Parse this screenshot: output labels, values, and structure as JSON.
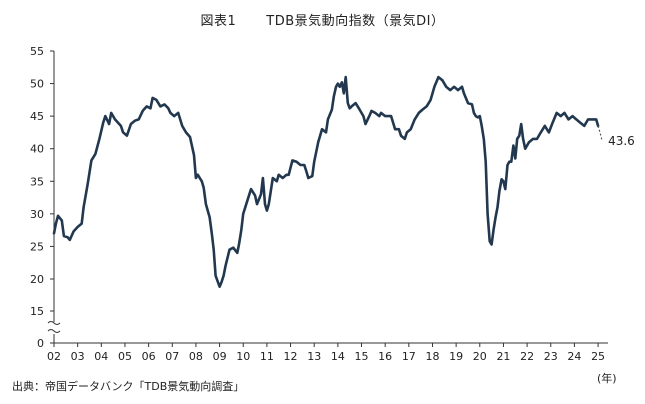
{
  "figure": {
    "number": "図表1",
    "title": "TDB景気動向指数（景気DI）"
  },
  "source": "出典：帝国データバンク「TDB景気動向調査」",
  "unit_label": "(年)",
  "chart_data": {
    "type": "line",
    "title": "TDB景気動向指数（景気DI）",
    "xlabel": "(年)",
    "ylabel": "",
    "xlim": [
      2002,
      2025.42
    ],
    "ylim": [
      0,
      55
    ],
    "axis_break": [
      0,
      15
    ],
    "grid": false,
    "line_color": "#22384f",
    "y_ticks": [
      0,
      15,
      20,
      25,
      30,
      35,
      40,
      45,
      50,
      55
    ],
    "x_ticks": [
      "02",
      "03",
      "04",
      "05",
      "06",
      "07",
      "08",
      "09",
      "10",
      "11",
      "12",
      "13",
      "14",
      "15",
      "16",
      "17",
      "18",
      "19",
      "20",
      "21",
      "22",
      "23",
      "24",
      "25"
    ],
    "end_label": "43.6",
    "series": [
      {
        "values": [
          [
            2002.0,
            27.0
          ],
          [
            2002.08,
            28.5
          ],
          [
            2002.17,
            29.7
          ],
          [
            2002.33,
            29.0
          ],
          [
            2002.42,
            26.6
          ],
          [
            2002.58,
            26.4
          ],
          [
            2002.67,
            26.0
          ],
          [
            2002.83,
            27.3
          ],
          [
            2003.0,
            28.0
          ],
          [
            2003.17,
            28.5
          ],
          [
            2003.25,
            31.0
          ],
          [
            2003.42,
            34.5
          ],
          [
            2003.58,
            38.2
          ],
          [
            2003.75,
            39.2
          ],
          [
            2003.92,
            41.5
          ],
          [
            2004.08,
            44.0
          ],
          [
            2004.17,
            45.0
          ],
          [
            2004.33,
            43.8
          ],
          [
            2004.42,
            45.5
          ],
          [
            2004.58,
            44.5
          ],
          [
            2004.83,
            43.5
          ],
          [
            2004.92,
            42.5
          ],
          [
            2005.08,
            42.0
          ],
          [
            2005.25,
            43.8
          ],
          [
            2005.42,
            44.3
          ],
          [
            2005.58,
            44.5
          ],
          [
            2005.75,
            45.8
          ],
          [
            2005.92,
            46.5
          ],
          [
            2006.08,
            46.2
          ],
          [
            2006.17,
            47.8
          ],
          [
            2006.33,
            47.5
          ],
          [
            2006.5,
            46.5
          ],
          [
            2006.67,
            46.8
          ],
          [
            2006.83,
            46.2
          ],
          [
            2006.92,
            45.5
          ],
          [
            2007.08,
            45.0
          ],
          [
            2007.25,
            45.5
          ],
          [
            2007.42,
            43.5
          ],
          [
            2007.58,
            42.5
          ],
          [
            2007.75,
            41.8
          ],
          [
            2007.92,
            39.0
          ],
          [
            2008.0,
            35.5
          ],
          [
            2008.08,
            36.0
          ],
          [
            2008.25,
            35.0
          ],
          [
            2008.33,
            34.0
          ],
          [
            2008.42,
            31.5
          ],
          [
            2008.58,
            29.5
          ],
          [
            2008.67,
            27.0
          ],
          [
            2008.75,
            24.5
          ],
          [
            2008.83,
            20.5
          ],
          [
            2009.0,
            18.8
          ],
          [
            2009.08,
            19.5
          ],
          [
            2009.17,
            20.5
          ],
          [
            2009.25,
            22.0
          ],
          [
            2009.42,
            24.5
          ],
          [
            2009.58,
            24.8
          ],
          [
            2009.75,
            24.0
          ],
          [
            2009.83,
            25.5
          ],
          [
            2009.92,
            27.5
          ],
          [
            2010.0,
            30.0
          ],
          [
            2010.17,
            32.0
          ],
          [
            2010.33,
            33.8
          ],
          [
            2010.5,
            32.8
          ],
          [
            2010.58,
            31.5
          ],
          [
            2010.75,
            33.0
          ],
          [
            2010.83,
            35.5
          ],
          [
            2010.92,
            31.5
          ],
          [
            2011.0,
            30.5
          ],
          [
            2011.08,
            31.5
          ],
          [
            2011.25,
            35.5
          ],
          [
            2011.42,
            35.0
          ],
          [
            2011.5,
            36.0
          ],
          [
            2011.67,
            35.5
          ],
          [
            2011.83,
            36.0
          ],
          [
            2011.92,
            36.0
          ],
          [
            2012.08,
            38.2
          ],
          [
            2012.25,
            38.0
          ],
          [
            2012.42,
            37.5
          ],
          [
            2012.58,
            37.5
          ],
          [
            2012.67,
            36.5
          ],
          [
            2012.75,
            35.5
          ],
          [
            2012.92,
            35.8
          ],
          [
            2013.0,
            38.0
          ],
          [
            2013.17,
            41.0
          ],
          [
            2013.33,
            43.0
          ],
          [
            2013.5,
            42.5
          ],
          [
            2013.58,
            44.5
          ],
          [
            2013.75,
            46.0
          ],
          [
            2013.83,
            48.0
          ],
          [
            2013.92,
            49.5
          ],
          [
            2014.0,
            50.0
          ],
          [
            2014.08,
            49.5
          ],
          [
            2014.17,
            50.2
          ],
          [
            2014.25,
            48.5
          ],
          [
            2014.33,
            51.0
          ],
          [
            2014.42,
            47.0
          ],
          [
            2014.5,
            46.2
          ],
          [
            2014.58,
            46.5
          ],
          [
            2014.75,
            47.0
          ],
          [
            2014.92,
            46.0
          ],
          [
            2015.08,
            45.0
          ],
          [
            2015.17,
            43.8
          ],
          [
            2015.33,
            45.0
          ],
          [
            2015.42,
            45.8
          ],
          [
            2015.58,
            45.5
          ],
          [
            2015.75,
            45.0
          ],
          [
            2015.83,
            45.5
          ],
          [
            2016.0,
            45.0
          ],
          [
            2016.25,
            45.0
          ],
          [
            2016.42,
            43.0
          ],
          [
            2016.58,
            43.0
          ],
          [
            2016.67,
            42.0
          ],
          [
            2016.83,
            41.5
          ],
          [
            2016.92,
            42.5
          ],
          [
            2017.08,
            43.0
          ],
          [
            2017.25,
            44.5
          ],
          [
            2017.42,
            45.5
          ],
          [
            2017.58,
            46.0
          ],
          [
            2017.75,
            46.5
          ],
          [
            2017.92,
            47.5
          ],
          [
            2018.08,
            49.5
          ],
          [
            2018.25,
            51.0
          ],
          [
            2018.42,
            50.5
          ],
          [
            2018.58,
            49.5
          ],
          [
            2018.75,
            49.0
          ],
          [
            2018.92,
            49.5
          ],
          [
            2019.08,
            49.0
          ],
          [
            2019.25,
            49.5
          ],
          [
            2019.33,
            48.5
          ],
          [
            2019.5,
            47.0
          ],
          [
            2019.67,
            46.8
          ],
          [
            2019.75,
            45.5
          ],
          [
            2019.83,
            45.0
          ],
          [
            2019.92,
            44.8
          ],
          [
            2020.0,
            45.0
          ],
          [
            2020.08,
            43.5
          ],
          [
            2020.17,
            41.5
          ],
          [
            2020.25,
            38.0
          ],
          [
            2020.33,
            30.0
          ],
          [
            2020.42,
            25.8
          ],
          [
            2020.5,
            25.3
          ],
          [
            2020.58,
            27.5
          ],
          [
            2020.67,
            29.5
          ],
          [
            2020.75,
            31.0
          ],
          [
            2020.83,
            33.5
          ],
          [
            2020.92,
            35.3
          ],
          [
            2021.0,
            35.0
          ],
          [
            2021.08,
            33.8
          ],
          [
            2021.17,
            37.5
          ],
          [
            2021.25,
            38.0
          ],
          [
            2021.33,
            38.0
          ],
          [
            2021.42,
            40.5
          ],
          [
            2021.5,
            38.5
          ],
          [
            2021.58,
            41.5
          ],
          [
            2021.67,
            42.0
          ],
          [
            2021.75,
            43.8
          ],
          [
            2021.83,
            41.5
          ],
          [
            2021.92,
            40.0
          ],
          [
            2022.08,
            41.0
          ],
          [
            2022.25,
            41.5
          ],
          [
            2022.42,
            41.5
          ],
          [
            2022.58,
            42.5
          ],
          [
            2022.75,
            43.5
          ],
          [
            2022.92,
            42.5
          ],
          [
            2023.08,
            44.0
          ],
          [
            2023.25,
            45.5
          ],
          [
            2023.42,
            45.0
          ],
          [
            2023.58,
            45.5
          ],
          [
            2023.75,
            44.5
          ],
          [
            2023.92,
            45.0
          ],
          [
            2024.08,
            44.5
          ],
          [
            2024.25,
            44.0
          ],
          [
            2024.42,
            43.5
          ],
          [
            2024.58,
            44.5
          ],
          [
            2024.75,
            44.5
          ],
          [
            2024.92,
            44.5
          ],
          [
            2025.0,
            43.5
          ]
        ]
      }
    ],
    "projection": [
      [
        2025.0,
        43.5
      ],
      [
        2025.08,
        42.5
      ],
      [
        2025.17,
        41.2
      ]
    ]
  }
}
